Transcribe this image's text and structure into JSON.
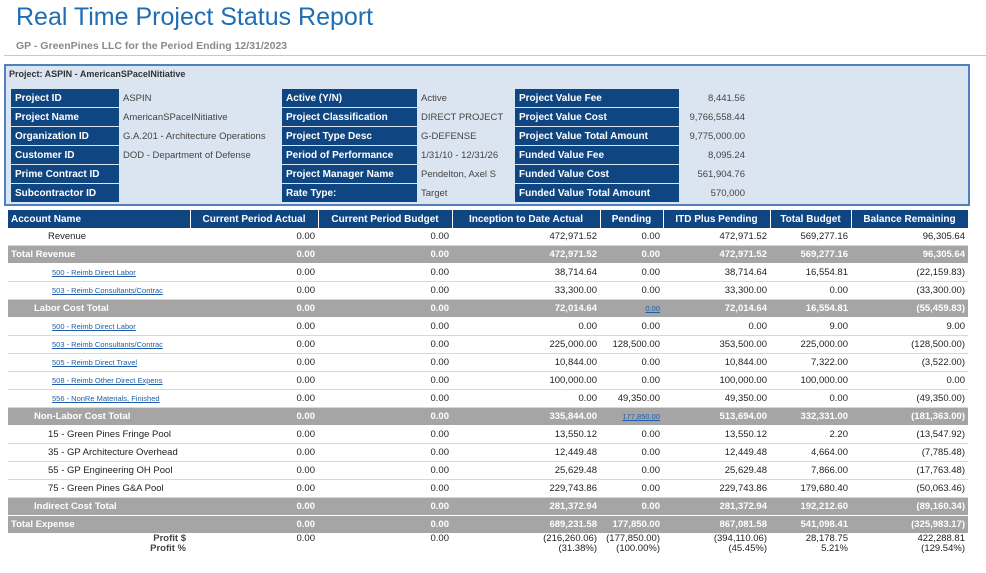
{
  "header": {
    "title": "Real Time Project Status Report",
    "subtitle": "GP - GreenPines LLC for the Period Ending 12/31/2023"
  },
  "project": {
    "heading": "Project: ASPIN - AmericanSPaceINitiative",
    "fields": [
      [
        {
          "label": "Project ID",
          "value": "ASPIN"
        },
        {
          "label": "Active (Y/N)",
          "value": "Active"
        },
        {
          "label": "Project Value Fee",
          "value": "8,441.56"
        }
      ],
      [
        {
          "label": "Project Name",
          "value": "AmericanSPaceINitiative"
        },
        {
          "label": "Project Classification",
          "value": "DIRECT PROJECT"
        },
        {
          "label": "Project Value Cost",
          "value": "9,766,558.44"
        }
      ],
      [
        {
          "label": "Organization ID",
          "value": "G.A.201 - Architecture Operations"
        },
        {
          "label": "Project Type Desc",
          "value": "G-DEFENSE"
        },
        {
          "label": "Project Value Total Amount",
          "value": "9,775,000.00"
        }
      ],
      [
        {
          "label": "Customer ID",
          "value": "DOD - Department of Defense"
        },
        {
          "label": "Period of Performance",
          "value": "1/31/10 - 12/31/26"
        },
        {
          "label": "Funded Value Fee",
          "value": "8,095.24"
        }
      ],
      [
        {
          "label": "Prime Contract ID",
          "value": null
        },
        {
          "label": "Project Manager Name",
          "value": "Pendelton, Axel S"
        },
        {
          "label": "Funded Value Cost",
          "value": "561,904.76"
        }
      ],
      [
        {
          "label": "Subcontractor ID",
          "value": null
        },
        {
          "label": "Rate Type:",
          "value": "Target"
        },
        {
          "label": "Funded Value Total Amount",
          "value": "570,000"
        }
      ]
    ]
  },
  "table": {
    "columns": [
      "Account Name",
      "Current Period Actual",
      "Current Period Budget",
      "Inception to Date Actual",
      "Pending",
      "ITD Plus Pending",
      "Total Budget",
      "Balance Remaining"
    ],
    "rows": [
      {
        "style": "plain",
        "cells": [
          "Revenue",
          "0.00",
          "0.00",
          "472,971.52",
          "0.00",
          "472,971.52",
          "569,277.16",
          "96,305.64"
        ]
      },
      {
        "style": "total",
        "cells": [
          "Total Revenue",
          "0.00",
          "0.00",
          "472,971.52",
          "0.00",
          "472,971.52",
          "569,277.16",
          "96,305.64"
        ]
      },
      {
        "style": "link",
        "cells": [
          "500 - Reimb Direct Labor",
          "0.00",
          "0.00",
          "38,714.64",
          "0.00",
          "38,714.64",
          "16,554.81",
          "(22,159.83)"
        ]
      },
      {
        "style": "link",
        "cells": [
          "503 - Reimb Consultants/Contrac",
          "0.00",
          "0.00",
          "33,300.00",
          "0.00",
          "33,300.00",
          "0.00",
          "(33,300.00)"
        ]
      },
      {
        "style": "subtotal",
        "linked": [
          4
        ],
        "cells": [
          "Labor Cost Total",
          "0.00",
          "0.00",
          "72,014.64",
          "0.00",
          "72,014.64",
          "16,554.81",
          "(55,459.83)"
        ]
      },
      {
        "style": "link",
        "cells": [
          "500 - Reimb Direct Labor",
          "0.00",
          "0.00",
          "0.00",
          "0.00",
          "0.00",
          "9.00",
          "9.00"
        ]
      },
      {
        "style": "link",
        "cells": [
          "503 - Reimb Consultants/Contrac",
          "0.00",
          "0.00",
          "225,000.00",
          "128,500.00",
          "353,500.00",
          "225,000.00",
          "(128,500.00)"
        ]
      },
      {
        "style": "link",
        "cells": [
          "505 - Reimb Direct Travel",
          "0.00",
          "0.00",
          "10,844.00",
          "0.00",
          "10,844.00",
          "7,322.00",
          "(3,522.00)"
        ]
      },
      {
        "style": "link",
        "cells": [
          "508 - Reimb Other Direct Expens",
          "0.00",
          "0.00",
          "100,000.00",
          "0.00",
          "100,000.00",
          "100,000.00",
          "0.00"
        ]
      },
      {
        "style": "link",
        "cells": [
          "556 - NonRe Materials, Finished",
          "0.00",
          "0.00",
          "0.00",
          "49,350.00",
          "49,350.00",
          "0.00",
          "(49,350.00)"
        ]
      },
      {
        "style": "subtotal",
        "linked": [
          4
        ],
        "cells": [
          "Non-Labor Cost Total",
          "0.00",
          "0.00",
          "335,844.00",
          "177,850.00",
          "513,694.00",
          "332,331.00",
          "(181,363.00)"
        ]
      },
      {
        "style": "plain",
        "cells": [
          "15 - Green Pines Fringe Pool",
          "0.00",
          "0.00",
          "13,550.12",
          "0.00",
          "13,550.12",
          "2.20",
          "(13,547.92)"
        ]
      },
      {
        "style": "plain",
        "cells": [
          "35 - GP Architecture Overhead",
          "0.00",
          "0.00",
          "12,449.48",
          "0.00",
          "12,449.48",
          "4,664.00",
          "(7,785.48)"
        ]
      },
      {
        "style": "plain",
        "cells": [
          "55 - GP Engineering OH Pool",
          "0.00",
          "0.00",
          "25,629.48",
          "0.00",
          "25,629.48",
          "7,866.00",
          "(17,763.48)"
        ]
      },
      {
        "style": "plain",
        "cells": [
          "75 - Green Pines G&A Pool",
          "0.00",
          "0.00",
          "229,743.86",
          "0.00",
          "229,743.86",
          "179,680.40",
          "(50,063.46)"
        ]
      },
      {
        "style": "subtotal",
        "cells": [
          "Indirect Cost Total",
          "0.00",
          "0.00",
          "281,372.94",
          "0.00",
          "281,372.94",
          "192,212.60",
          "(89,160.34)"
        ]
      },
      {
        "style": "total",
        "cells": [
          "Total Expense",
          "0.00",
          "0.00",
          "689,231.58",
          "177,850.00",
          "867,081.58",
          "541,098.41",
          "(325,983.17)"
        ]
      },
      {
        "style": "profit",
        "cells": [
          "Profit $",
          "0.00",
          "0.00",
          "(216,260.06)",
          "(177,850.00)",
          "(394,110.06)",
          "28,178.75",
          "422,288.81"
        ]
      },
      {
        "style": "profit",
        "cells": [
          "Profit %",
          null,
          null,
          "(31.38%)",
          "(100.00%)",
          "(45.45%)",
          "5.21%",
          "(129.54%)"
        ]
      }
    ]
  }
}
